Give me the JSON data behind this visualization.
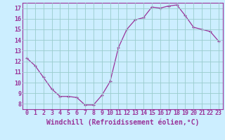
{
  "x": [
    0,
    1,
    2,
    3,
    4,
    5,
    6,
    7,
    8,
    9,
    10,
    11,
    12,
    13,
    14,
    15,
    16,
    17,
    18,
    19,
    20,
    21,
    22,
    23
  ],
  "y": [
    12.3,
    11.6,
    10.5,
    9.4,
    8.7,
    8.7,
    8.6,
    7.9,
    7.9,
    8.8,
    10.1,
    13.3,
    15.0,
    15.9,
    16.1,
    17.1,
    17.0,
    17.2,
    17.3,
    16.3,
    15.2,
    15.0,
    14.8,
    13.9
  ],
  "line_color": "#993399",
  "marker": "+",
  "marker_size": 3,
  "bg_color": "#cceeff",
  "grid_color": "#99cccc",
  "xlabel": "Windchill (Refroidissement éolien,°C)",
  "xlim": [
    -0.5,
    23.5
  ],
  "ylim": [
    7.5,
    17.5
  ],
  "yticks": [
    8,
    9,
    10,
    11,
    12,
    13,
    14,
    15,
    16,
    17
  ],
  "xticks": [
    0,
    1,
    2,
    3,
    4,
    5,
    6,
    7,
    8,
    9,
    10,
    11,
    12,
    13,
    14,
    15,
    16,
    17,
    18,
    19,
    20,
    21,
    22,
    23
  ],
  "label_color": "#993399",
  "spine_color": "#993399",
  "tick_fontsize": 6,
  "xlabel_fontsize": 7
}
